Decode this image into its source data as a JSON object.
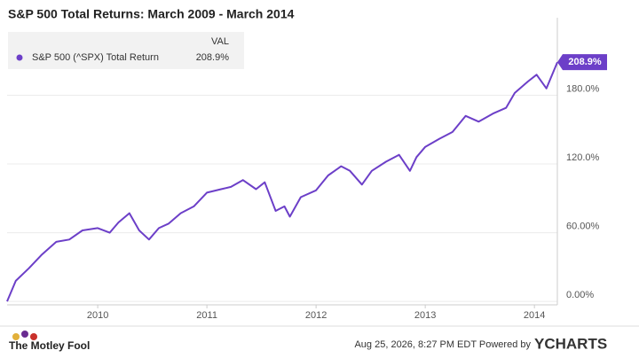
{
  "chart_data": {
    "type": "line",
    "title": "S&P 500 Total Returns: March 2009 - March 2014",
    "legend_header": "VAL",
    "x": [
      2009.17,
      2009.25,
      2009.37,
      2009.49,
      2009.62,
      2009.74,
      2009.86,
      2010.0,
      2010.11,
      2010.19,
      2010.29,
      2010.38,
      2010.47,
      2010.56,
      2010.65,
      2010.76,
      2010.88,
      2011.0,
      2011.13,
      2011.22,
      2011.33,
      2011.45,
      2011.53,
      2011.63,
      2011.71,
      2011.76,
      2011.86,
      2012.0,
      2012.11,
      2012.23,
      2012.31,
      2012.42,
      2012.51,
      2012.64,
      2012.76,
      2012.86,
      2012.92,
      2013.0,
      2013.13,
      2013.25,
      2013.37,
      2013.49,
      2013.62,
      2013.74,
      2013.82,
      2013.94,
      2014.02,
      2014.11,
      2014.21
    ],
    "series": [
      {
        "name": "S&P 500 (^SPX) Total Return",
        "color": "#6c3fc8",
        "end_label": "208.9%",
        "values": [
          0,
          18,
          29,
          41,
          52,
          54,
          62,
          64,
          60,
          69,
          77,
          62,
          54,
          64,
          68,
          77,
          83,
          95,
          98,
          100,
          106,
          98,
          104,
          79,
          83,
          74,
          91,
          97,
          110,
          118,
          114,
          102,
          114,
          122,
          128,
          114,
          126,
          135,
          142,
          148,
          162,
          157,
          164,
          169,
          182,
          192,
          198,
          186,
          208.9
        ]
      }
    ],
    "xlim": [
      2009.17,
      2014.21
    ],
    "xticks": [
      2010,
      2011,
      2012,
      2013,
      2014
    ],
    "ylim": [
      -3,
      240
    ],
    "yticks": [
      {
        "value": 0,
        "label": "0.00%"
      },
      {
        "value": 60,
        "label": "60.00%"
      },
      {
        "value": 120,
        "label": "120.0%"
      },
      {
        "value": 180,
        "label": "180.0%"
      }
    ],
    "grid": true
  },
  "footer": {
    "brand": "The Motley Fool",
    "timestamp": "Aug 25, 2026, 8:27 PM EDT  Powered by",
    "provider": "YCHARTS"
  }
}
